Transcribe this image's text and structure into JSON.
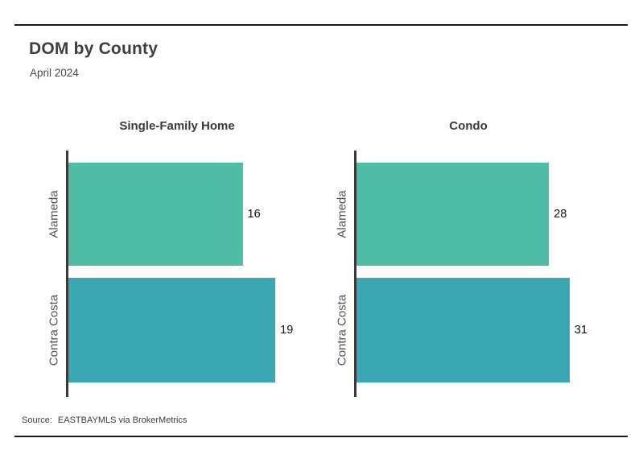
{
  "header": {
    "title": "DOM by County",
    "subtitle": "April 2024"
  },
  "footer": {
    "source_label": "Source:",
    "source_text": "EASTBAYMLS via BrokerMetrics"
  },
  "chart_data": {
    "type": "bar",
    "orientation": "horizontal",
    "title": "DOM by County",
    "subtitle": "April 2024",
    "categories": [
      "Alameda",
      "Contra Costa"
    ],
    "panels": [
      {
        "title": "Single-Family Home",
        "values": [
          16,
          19
        ]
      },
      {
        "title": "Condo",
        "values": [
          28,
          31
        ]
      }
    ],
    "bar_colors": [
      "#4FBCA6",
      "#3BA7B2"
    ],
    "axis_color": "#3a3a3a",
    "value_label_color": "#111111",
    "xlim_panel_max_factor": 1.05,
    "grid": false,
    "legend": "none"
  }
}
